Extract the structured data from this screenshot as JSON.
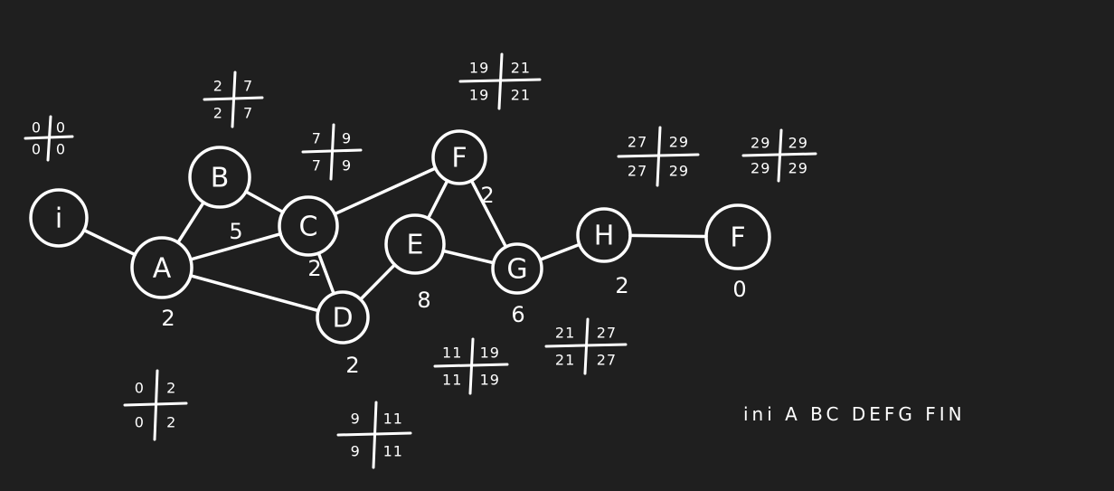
{
  "theme": {
    "background": "#1f1f1f",
    "ink": "#ffffff"
  },
  "nodes": [
    {
      "id": "i",
      "label": "i"
    },
    {
      "id": "A",
      "label": "A"
    },
    {
      "id": "B",
      "label": "B"
    },
    {
      "id": "C",
      "label": "C"
    },
    {
      "id": "D",
      "label": "D"
    },
    {
      "id": "E",
      "label": "E"
    },
    {
      "id": "F",
      "label": "F"
    },
    {
      "id": "G",
      "label": "G"
    },
    {
      "id": "H",
      "label": "H"
    },
    {
      "id": "Fin",
      "label": "F"
    }
  ],
  "edges": [
    {
      "from": "i",
      "to": "A"
    },
    {
      "from": "A",
      "to": "B"
    },
    {
      "from": "A",
      "to": "C"
    },
    {
      "from": "A",
      "to": "D"
    },
    {
      "from": "B",
      "to": "C"
    },
    {
      "from": "C",
      "to": "D"
    },
    {
      "from": "C",
      "to": "F"
    },
    {
      "from": "D",
      "to": "E"
    },
    {
      "from": "E",
      "to": "F"
    },
    {
      "from": "E",
      "to": "G"
    },
    {
      "from": "F",
      "to": "G"
    },
    {
      "from": "G",
      "to": "H"
    },
    {
      "from": "H",
      "to": "Fin"
    }
  ],
  "durations": [
    {
      "node": "A",
      "value": "2"
    },
    {
      "node": "B",
      "value": "5"
    },
    {
      "node": "C",
      "value": "2"
    },
    {
      "node": "D",
      "value": "2"
    },
    {
      "node": "E",
      "value": "8"
    },
    {
      "node": "F",
      "value": "2"
    },
    {
      "node": "G",
      "value": "6"
    },
    {
      "node": "H",
      "value": "2"
    },
    {
      "node": "Fin",
      "value": "0"
    }
  ],
  "time_crosses": [
    {
      "node": "i",
      "tl": "0",
      "tr": "0",
      "bl": "0",
      "br": "0"
    },
    {
      "node": "A",
      "tl": "0",
      "tr": "2",
      "bl": "0",
      "br": "2"
    },
    {
      "node": "B",
      "tl": "2",
      "tr": "7",
      "bl": "2",
      "br": "7"
    },
    {
      "node": "C",
      "tl": "7",
      "tr": "9",
      "bl": "7",
      "br": "9"
    },
    {
      "node": "D",
      "tl": "9",
      "tr": "11",
      "bl": "9",
      "br": "11"
    },
    {
      "node": "E",
      "tl": "11",
      "tr": "19",
      "bl": "11",
      "br": "19"
    },
    {
      "node": "F",
      "tl": "19",
      "tr": "21",
      "bl": "19",
      "br": "21"
    },
    {
      "node": "G",
      "tl": "21",
      "tr": "27",
      "bl": "21",
      "br": "27"
    },
    {
      "node": "H",
      "tl": "27",
      "tr": "29",
      "bl": "27",
      "br": "29"
    },
    {
      "node": "Fin",
      "tl": "29",
      "tr": "29",
      "bl": "29",
      "br": "29"
    }
  ],
  "critical_path_note": "ini  A BC DEFG FIN"
}
